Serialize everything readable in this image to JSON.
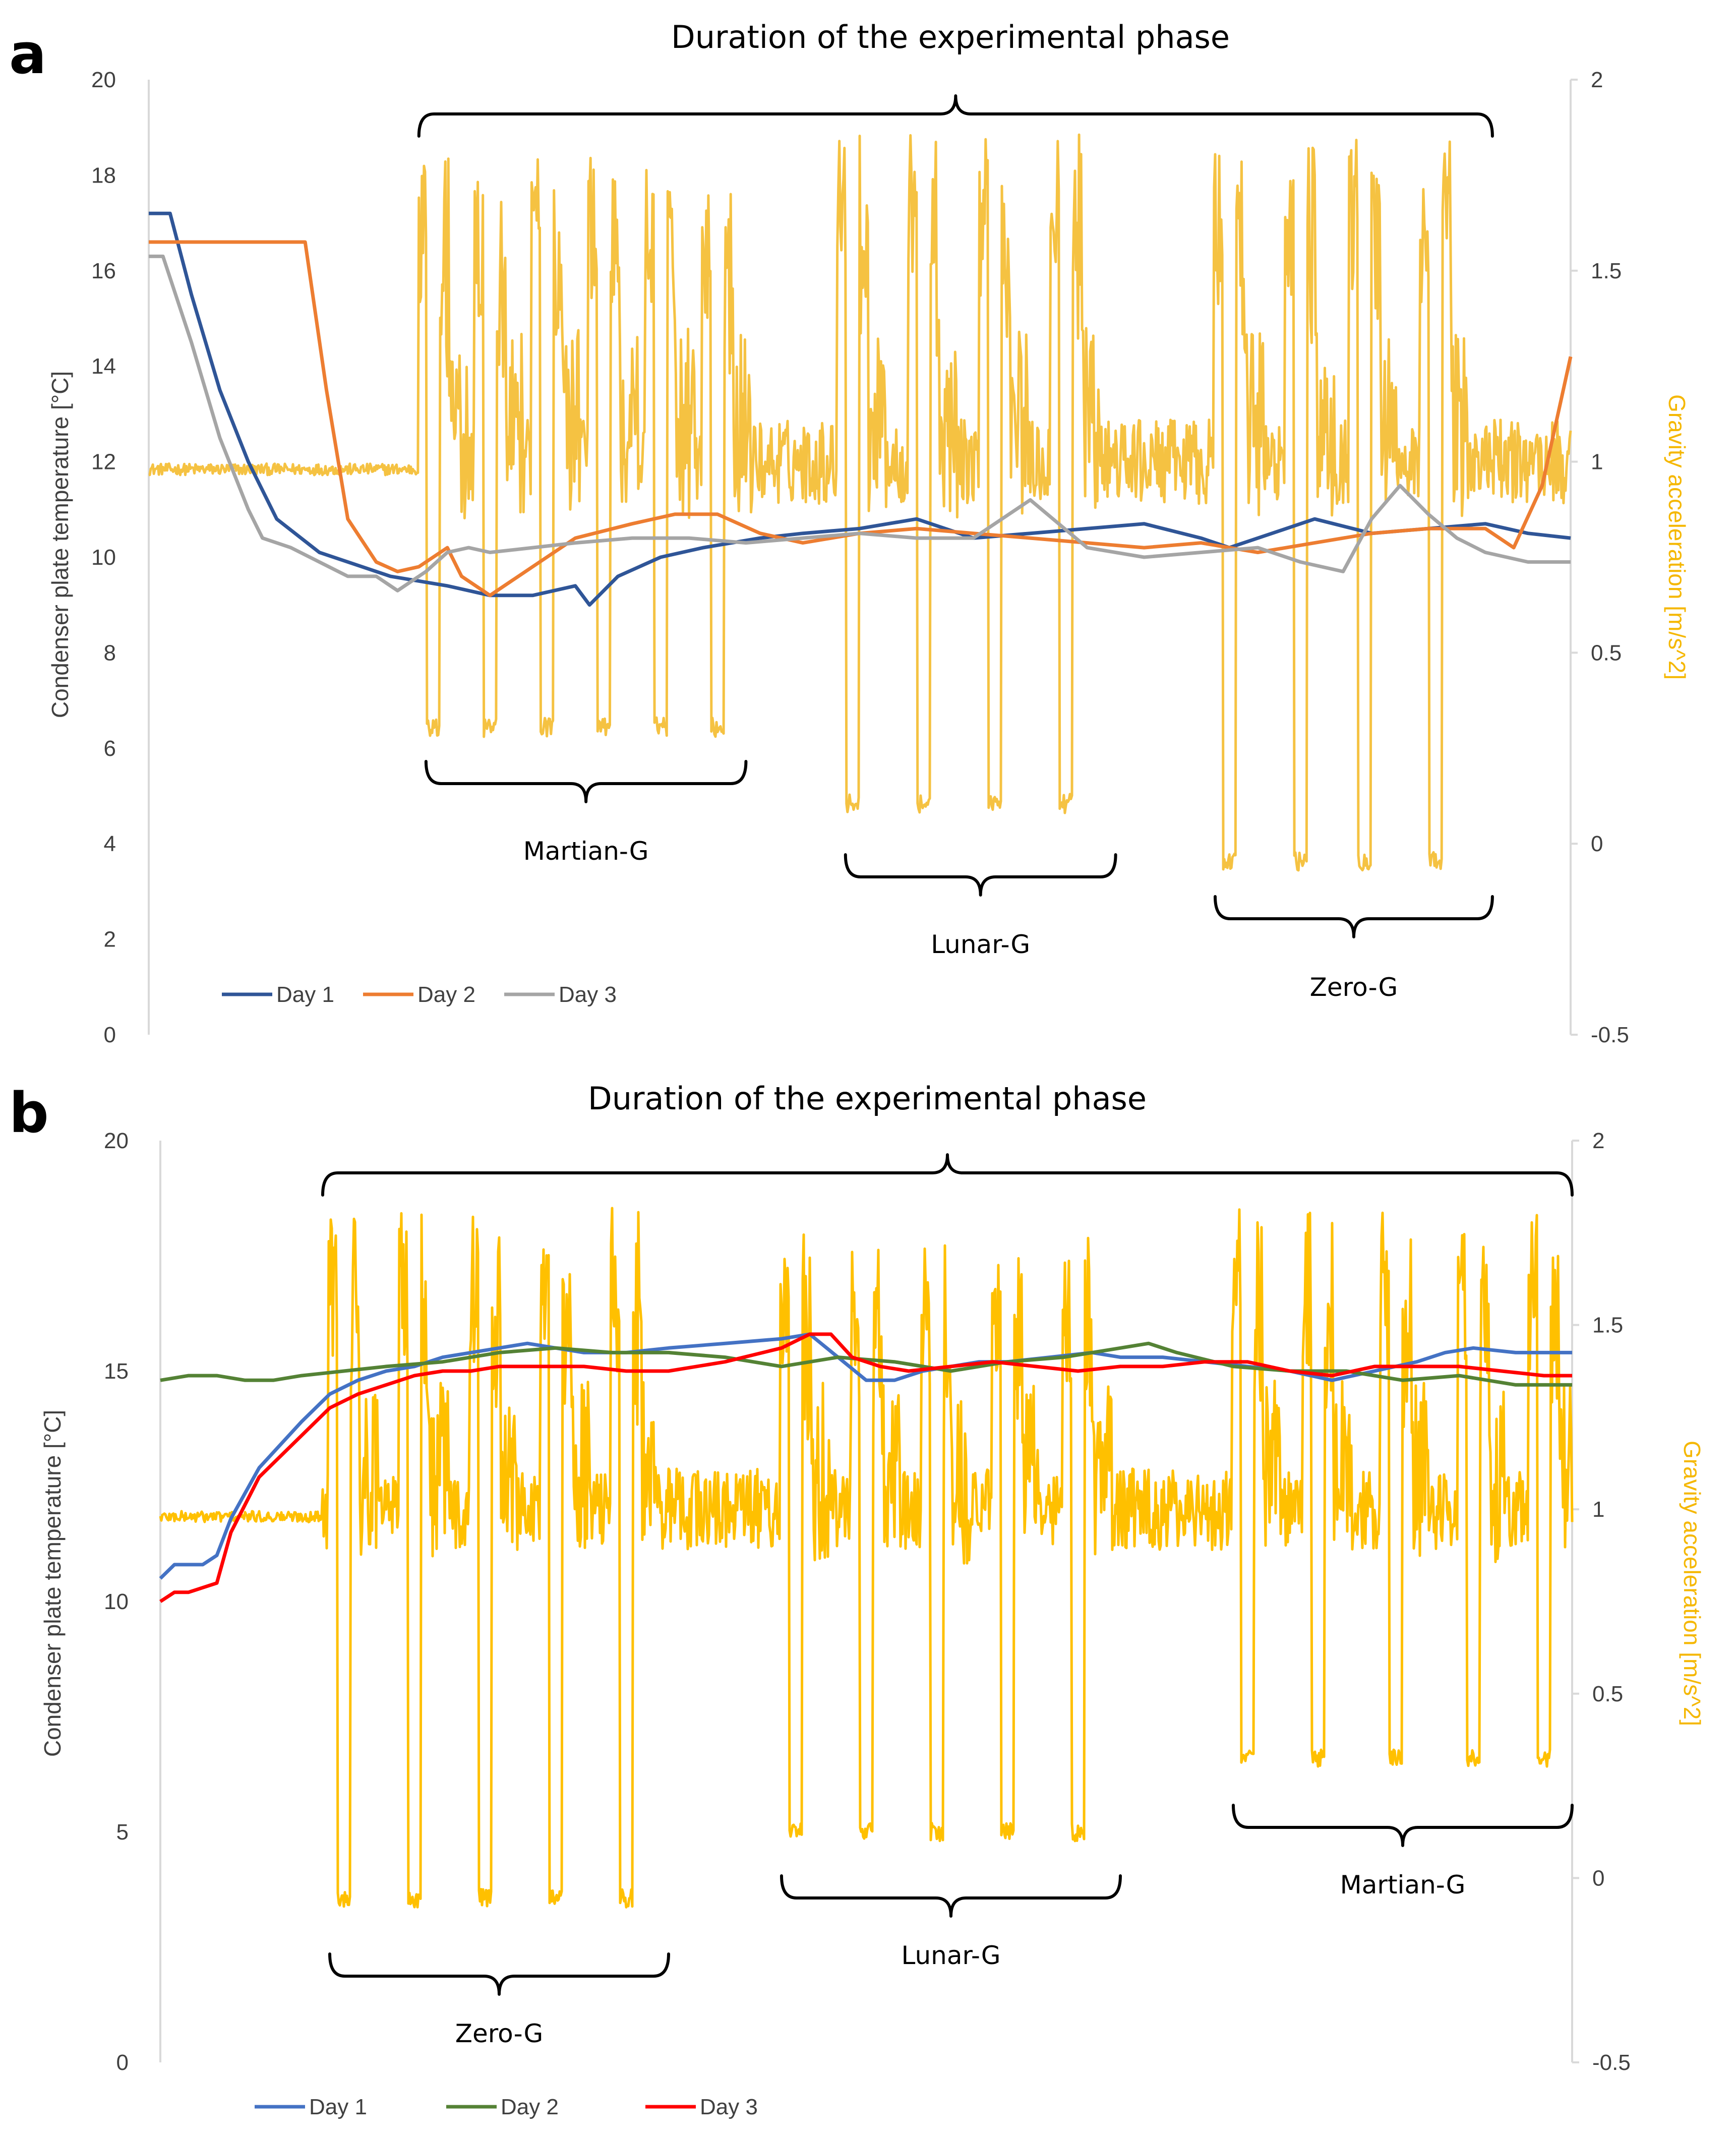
{
  "chart_data": [
    {
      "panel": "a",
      "type": "line",
      "title": "Duration of the experimental phase",
      "ylabel": "Condenser plate temperature [°C]",
      "y2label": "Gravity acceleration [m/s^2]",
      "ylim": [
        0,
        20
      ],
      "y2lim": [
        -0.5,
        2
      ],
      "yticks": [
        "0",
        "2",
        "4",
        "6",
        "8",
        "10",
        "12",
        "14",
        "16",
        "18",
        "20"
      ],
      "y2ticks": [
        "-0.5",
        "0",
        "0.5",
        "1",
        "1.5",
        "2"
      ],
      "x_range": [
        0,
        100
      ],
      "legend": "bottom-left",
      "gravity_color": "#f5c242",
      "phase_span": [
        19,
        94.5
      ],
      "segments": [
        {
          "label": "Martian-G",
          "start": 19.5,
          "end": 42,
          "spikes": [
            20,
            24,
            28,
            32,
            36,
            40
          ],
          "high": 1.82,
          "low": 0.28,
          "baseline": 1.0
        },
        {
          "label": "Lunar-G",
          "start": 49,
          "end": 68,
          "spikes": [
            49.5,
            54.5,
            59.5,
            64.5
          ],
          "high": 1.86,
          "low": 0.08,
          "baseline": 1.0
        },
        {
          "label": "Zero-G",
          "start": 75,
          "end": 94.5,
          "spikes": [
            76,
            81,
            85.5,
            90.5
          ],
          "high": 1.86,
          "low": -0.07,
          "baseline": 1.0
        }
      ],
      "series": [
        {
          "name": "Day 1",
          "color": "#2f5597",
          "x": [
            0,
            1.5,
            3,
            5,
            7,
            9,
            12,
            15,
            17,
            19,
            21,
            24,
            27,
            30,
            31,
            33,
            36,
            39,
            43,
            46,
            50,
            54,
            58,
            62,
            66,
            70,
            74,
            76,
            79,
            82,
            86,
            90,
            94,
            97,
            100
          ],
          "y": [
            17.2,
            17.2,
            15.5,
            13.5,
            12,
            10.8,
            10.1,
            9.8,
            9.6,
            9.5,
            9.4,
            9.2,
            9.2,
            9.4,
            9.0,
            9.6,
            10.0,
            10.2,
            10.4,
            10.5,
            10.6,
            10.8,
            10.4,
            10.5,
            10.6,
            10.7,
            10.4,
            10.2,
            10.5,
            10.8,
            10.5,
            10.6,
            10.7,
            10.5,
            10.4
          ]
        },
        {
          "name": "Day 2",
          "color": "#ed7d31",
          "x": [
            0,
            3,
            6,
            9,
            11,
            12.5,
            14,
            16,
            17.5,
            19,
            21,
            22,
            24,
            27,
            30,
            34,
            37,
            40,
            43,
            46,
            50,
            54,
            58,
            62,
            66,
            70,
            74,
            78,
            82,
            86,
            90,
            94,
            96,
            98,
            100
          ],
          "y": [
            16.6,
            16.6,
            16.6,
            16.6,
            16.6,
            13.5,
            10.8,
            9.9,
            9.7,
            9.8,
            10.2,
            9.6,
            9.2,
            9.8,
            10.4,
            10.7,
            10.9,
            10.9,
            10.5,
            10.3,
            10.5,
            10.6,
            10.5,
            10.4,
            10.3,
            10.2,
            10.3,
            10.1,
            10.3,
            10.5,
            10.6,
            10.6,
            10.2,
            11.5,
            14.2
          ]
        },
        {
          "name": "Day 3",
          "color": "#a5a5a5",
          "x": [
            0,
            1,
            3,
            5,
            7,
            8,
            10,
            12,
            14,
            16,
            17.5,
            18.5,
            19.5,
            21,
            22.5,
            24,
            27,
            30,
            34,
            38,
            42,
            46,
            50,
            54,
            58,
            62,
            66,
            70,
            74,
            78,
            81,
            84,
            86,
            88,
            90,
            92,
            94,
            97,
            100
          ],
          "y": [
            16.3,
            16.3,
            14.5,
            12.5,
            11,
            10.4,
            10.2,
            9.9,
            9.6,
            9.6,
            9.3,
            9.5,
            9.7,
            10.1,
            10.2,
            10.1,
            10.2,
            10.3,
            10.4,
            10.4,
            10.3,
            10.4,
            10.5,
            10.4,
            10.4,
            11.2,
            10.2,
            10.0,
            10.1,
            10.2,
            9.9,
            9.7,
            10.8,
            11.5,
            10.9,
            10.4,
            10.1,
            9.9,
            9.9
          ]
        }
      ]
    },
    {
      "panel": "b",
      "type": "line",
      "title": "Duration of the experimental phase",
      "ylabel": "Condenser plate temperature [°C]",
      "y2label": "Gravity acceleration [m/s^2]",
      "ylim": [
        0,
        20
      ],
      "y2lim": [
        -0.5,
        2
      ],
      "yticks": [
        "0",
        "5",
        "10",
        "15",
        "20"
      ],
      "y2ticks": [
        "-0.5",
        "0",
        "0.5",
        "1",
        "1.5",
        "2"
      ],
      "x_range": [
        0,
        100
      ],
      "legend": "bottom-left",
      "gravity_color": "#ffc000",
      "phase_span": [
        11.5,
        100
      ],
      "segments": [
        {
          "label": "Zero-G",
          "start": 12,
          "end": 36,
          "spikes": [
            13,
            18,
            23,
            28,
            33
          ],
          "high": 1.82,
          "low": -0.08,
          "baseline": 0.95
        },
        {
          "label": "Lunar-G",
          "start": 44,
          "end": 68,
          "spikes": [
            45,
            50,
            55,
            60,
            65
          ],
          "high": 1.75,
          "low": 0.1,
          "baseline": 0.97
        },
        {
          "label": "Martian-G",
          "start": 76,
          "end": 100,
          "spikes": [
            77,
            82,
            87.5,
            93,
            98
          ],
          "high": 1.82,
          "low": 0.3,
          "baseline": 0.95
        }
      ],
      "series": [
        {
          "name": "Day 1",
          "color": "#4472c4",
          "x": [
            0,
            1,
            2,
            3,
            4,
            5,
            7,
            10,
            12,
            14,
            16,
            18,
            20,
            22,
            24,
            26,
            28,
            30,
            33,
            36,
            40,
            44,
            46,
            48,
            50,
            52,
            54,
            56,
            58,
            60,
            63,
            66,
            68,
            71,
            74,
            77,
            80,
            83,
            86,
            89,
            91,
            93,
            96,
            100
          ],
          "y": [
            10.5,
            10.8,
            10.8,
            10.8,
            11,
            11.8,
            12.9,
            13.9,
            14.5,
            14.8,
            15.0,
            15.1,
            15.3,
            15.4,
            15.5,
            15.6,
            15.5,
            15.4,
            15.4,
            15.5,
            15.6,
            15.7,
            15.8,
            15.3,
            14.8,
            14.8,
            15.0,
            15.1,
            15.2,
            15.2,
            15.3,
            15.4,
            15.3,
            15.3,
            15.2,
            15.1,
            15.0,
            14.8,
            15.0,
            15.2,
            15.4,
            15.5,
            15.4,
            15.4
          ]
        },
        {
          "name": "Day 2",
          "color": "#548235",
          "x": [
            0,
            2,
            4,
            6,
            8,
            10,
            13,
            16,
            20,
            24,
            28,
            32,
            36,
            40,
            44,
            48,
            52,
            56,
            60,
            64,
            68,
            70,
            72,
            76,
            80,
            84,
            88,
            92,
            96,
            100
          ],
          "y": [
            14.8,
            14.9,
            14.9,
            14.8,
            14.8,
            14.9,
            15.0,
            15.1,
            15.2,
            15.4,
            15.5,
            15.4,
            15.4,
            15.3,
            15.1,
            15.3,
            15.2,
            15.0,
            15.2,
            15.3,
            15.5,
            15.6,
            15.4,
            15.1,
            15.0,
            15.0,
            14.8,
            14.9,
            14.7,
            14.7
          ]
        },
        {
          "name": "Day 3",
          "color": "#ff0000",
          "x": [
            0,
            1,
            2,
            3,
            4,
            5,
            7,
            10,
            12,
            14,
            16,
            18,
            20,
            22,
            24,
            26,
            28,
            30,
            33,
            36,
            40,
            44,
            46,
            47.5,
            49,
            51,
            53,
            56,
            59,
            62,
            65,
            68,
            71,
            74,
            77,
            80,
            83,
            86,
            89,
            92,
            95,
            98,
            100
          ],
          "y": [
            10.0,
            10.2,
            10.2,
            10.3,
            10.4,
            11.5,
            12.7,
            13.6,
            14.2,
            14.5,
            14.7,
            14.9,
            15.0,
            15.0,
            15.1,
            15.1,
            15.1,
            15.1,
            15.0,
            15.0,
            15.2,
            15.5,
            15.8,
            15.8,
            15.3,
            15.1,
            15.0,
            15.1,
            15.2,
            15.1,
            15.0,
            15.1,
            15.1,
            15.2,
            15.2,
            15.0,
            14.9,
            15.1,
            15.1,
            15.1,
            15.0,
            14.9,
            14.9
          ]
        }
      ]
    }
  ]
}
